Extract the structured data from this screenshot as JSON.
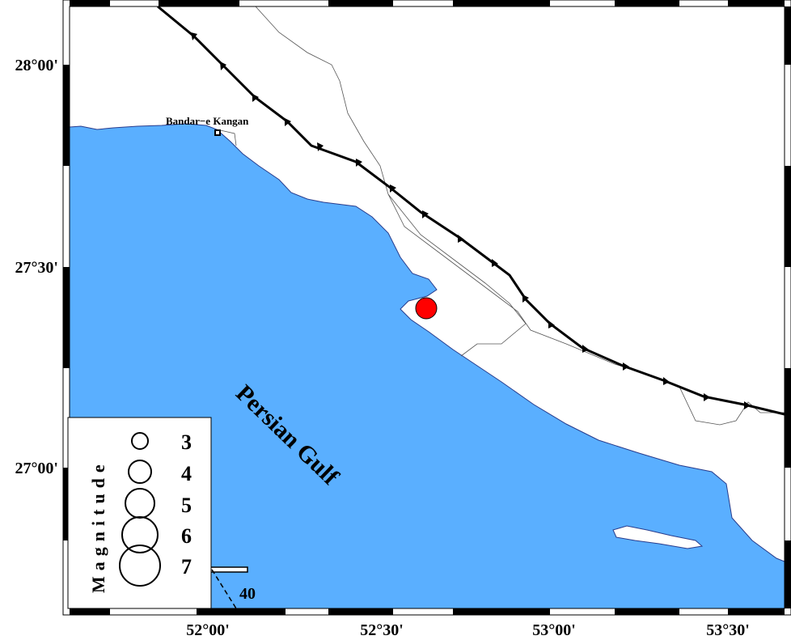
{
  "map": {
    "place_label": "Bandar−e Kangan",
    "water_label": "Persian Gulf",
    "lat_ticks": [
      "28°00'",
      "27°30'",
      "27°00'"
    ],
    "lon_ticks": [
      "52°00'",
      "52°30'",
      "53°00'",
      "53°30'"
    ],
    "scale_bar_label": "40",
    "colors": {
      "water": "#5aafff",
      "event": "#ff0000",
      "fault": "#000000"
    }
  },
  "legend": {
    "title": "Magnitude",
    "items": [
      "3",
      "4",
      "5",
      "6",
      "7"
    ]
  }
}
